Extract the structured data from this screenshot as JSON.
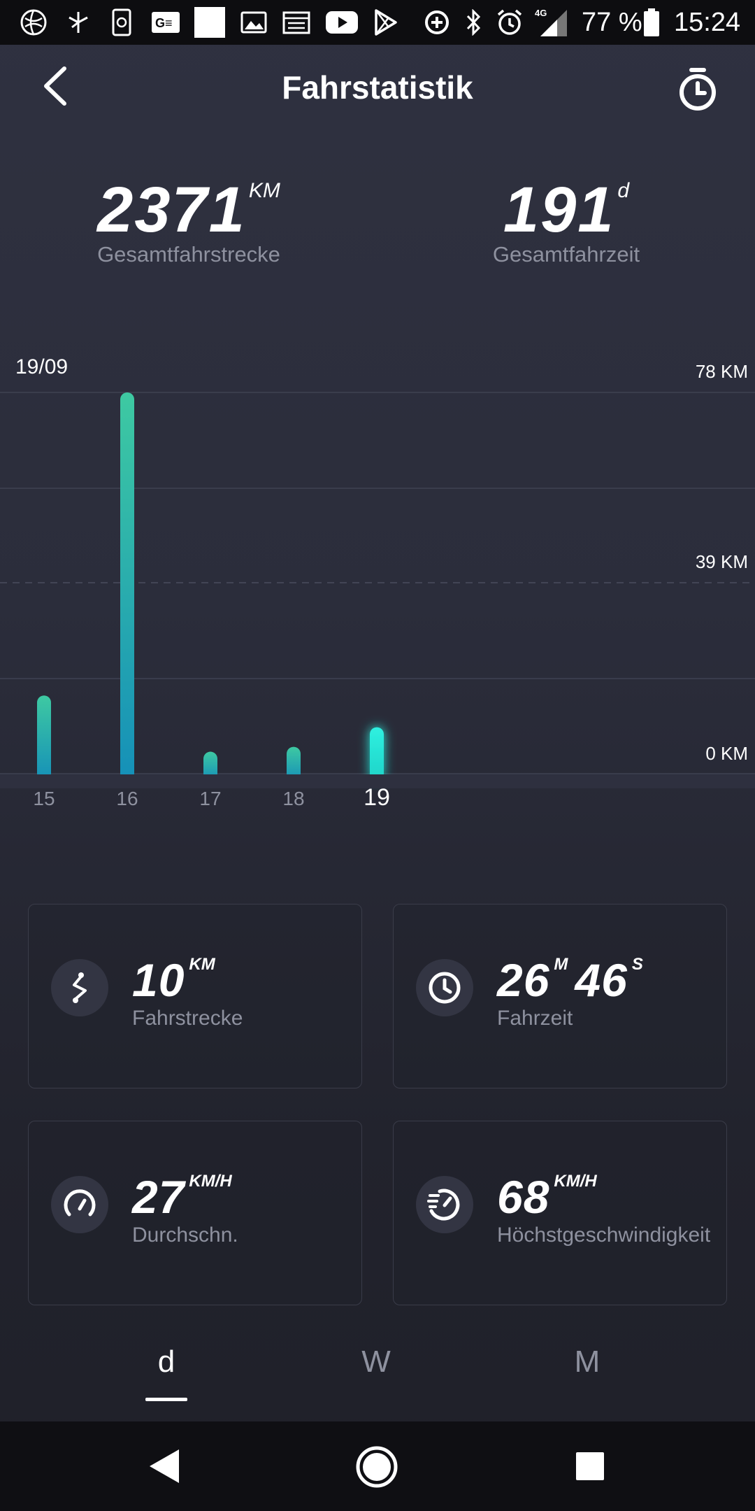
{
  "status_bar": {
    "battery": "77 %",
    "time": "15:24",
    "network": "4G"
  },
  "header": {
    "title": "Fahrstatistik",
    "back_icon": "chevron-left-icon",
    "timer_icon": "stopwatch-icon"
  },
  "totals": {
    "distance": {
      "value": "2371",
      "unit": "KM",
      "label": "Gesamtfahrstrecke"
    },
    "time": {
      "value": "191",
      "unit": "d",
      "label": "Gesamtfahrzeit"
    }
  },
  "chart": {
    "date_label": "19/09",
    "y_labels": [
      "78 KM",
      "39 KM",
      "0 KM"
    ]
  },
  "chart_data": {
    "type": "bar",
    "categories": [
      "15",
      "16",
      "17",
      "18",
      "19"
    ],
    "values": [
      16,
      78,
      4.5,
      5.5,
      9.5
    ],
    "selected": "19",
    "ylabel": "",
    "ylim": [
      0,
      78
    ],
    "grid": true
  },
  "stats": {
    "distance": {
      "value": "10",
      "unit": "KM",
      "label": "Fahrstrecke",
      "icon": "route-icon"
    },
    "ride_time": {
      "minutes": "26",
      "m_unit": "M",
      "seconds": "46",
      "s_unit": "S",
      "label": "Fahrzeit",
      "icon": "clock-icon"
    },
    "avg_speed": {
      "value": "27",
      "unit": "KM/H",
      "label": "Durchschn.",
      "icon": "speedometer-icon"
    },
    "max_speed": {
      "value": "68",
      "unit": "KM/H",
      "label": "Höchstgeschwindigkeit",
      "icon": "max-speed-icon"
    }
  },
  "tabs": {
    "day": "d",
    "week": "W",
    "month": "M",
    "active": "d"
  },
  "colors": {
    "bar_top": "#3ec9a2",
    "bar_bottom": "#1590b8",
    "bar_selected": "#2ff0e0"
  }
}
